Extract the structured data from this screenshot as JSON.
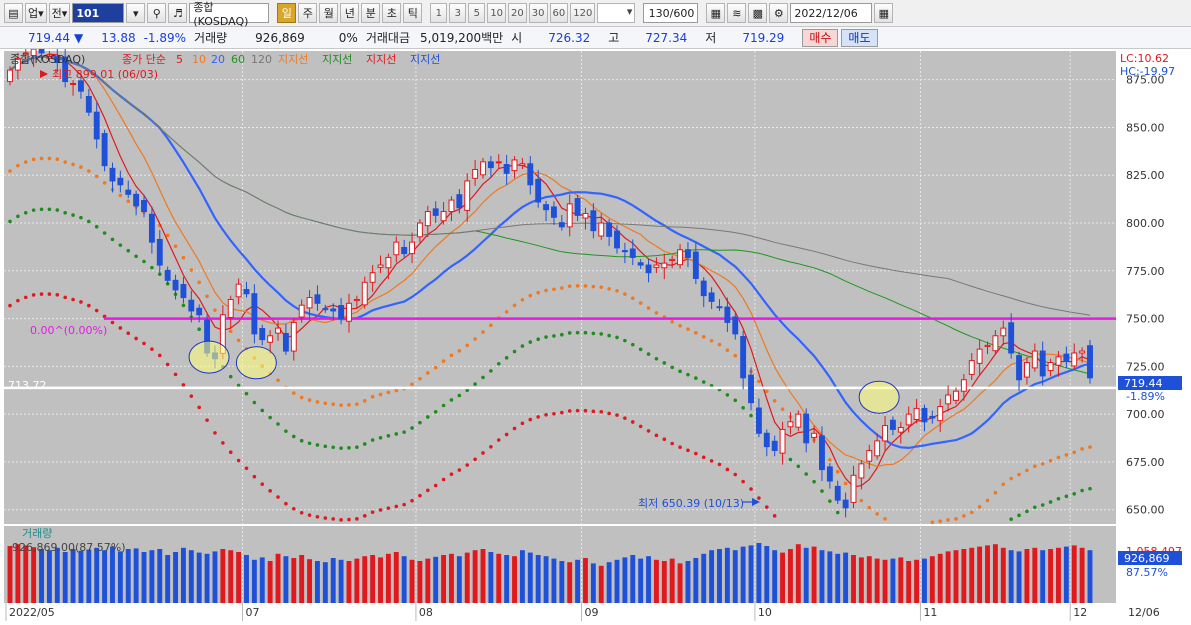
{
  "toolbar": {
    "up_label": "업",
    "jeon_label": "전",
    "code": "101",
    "market_name": "종합(KOSDAQ)",
    "periods": [
      "일",
      "주",
      "월",
      "년",
      "분",
      "초",
      "틱"
    ],
    "active_period": "일",
    "intervals": [
      "1",
      "3",
      "5",
      "10",
      "20",
      "30",
      "60",
      "120"
    ],
    "count": "130/600",
    "date": "2022/12/06"
  },
  "info": {
    "price": "719.44",
    "direction_arrow": "▼",
    "change": "13.88",
    "change_pct": "-1.89%",
    "volume_label": "거래량",
    "volume": "926,869",
    "volume_pct": "0%",
    "amount_label": "거래대금",
    "amount": "5,019,200백만",
    "open_label": "시",
    "open": "726.32",
    "high_label": "고",
    "high": "727.34",
    "low_label": "저",
    "low": "719.29",
    "buy_label": "매수",
    "sell_label": "매도"
  },
  "legend": {
    "prefix": "종합(KOSDAQ)",
    "ma_label": "종가 단순",
    "ma_periods": [
      "5",
      "10",
      "20",
      "60",
      "120"
    ],
    "envelope_labels": [
      "지지선",
      "지지선",
      "지지선",
      "지지선"
    ]
  },
  "annotations": {
    "top_right_lc": "LC:10.62",
    "top_right_hc": "HC:-19.97",
    "high_note": "최고 899.01 (06/03)",
    "low_note": "최저 650.39 (10/13)",
    "hline_label": "0.00^(0.00%)",
    "support_value": "713.72",
    "price_tag": "719.44",
    "price_tag_pct": "-1.89%",
    "volume_title": "거래량",
    "volume_legend": "926,869.00(87.57%)",
    "volume_axis_top": "1,058,497",
    "volume_tag": "926,869",
    "volume_tag_pct": "87.57%"
  },
  "colors": {
    "up": "#e0191e",
    "down": "#1e50d8",
    "ma5": "#e0191e",
    "ma10": "#f07820",
    "ma20": "#3264ff",
    "ma60": "#1e961e",
    "ma120": "#787878",
    "env_orange": "#f07820",
    "env_green": "#1e8c1e",
    "env_red": "#e0191e",
    "hline": "#e619e6",
    "support_line": "#ffffff",
    "plot_bg": "#c0c0c0"
  },
  "chart_data": {
    "type": "candlestick",
    "x_labels": [
      "2022/05",
      "07",
      "08",
      "09",
      "10",
      "11",
      "12",
      "12/06"
    ],
    "y_ticks": [
      "875.00",
      "850.00",
      "825.00",
      "800.00",
      "775.00",
      "750.00",
      "725.00",
      "700.00",
      "675.00",
      "650.00"
    ],
    "ylim": [
      642,
      890
    ],
    "horizontal_level": 750,
    "support_level": 713.72,
    "closes": [
      880,
      886,
      889,
      891,
      889,
      887,
      884,
      874,
      873,
      869,
      858,
      844,
      830,
      822,
      820,
      815,
      809,
      806,
      790,
      778,
      770,
      765,
      761,
      754,
      752,
      732,
      729,
      752,
      760,
      768,
      763,
      742,
      739,
      741,
      745,
      733,
      748,
      757,
      761,
      758,
      755,
      754,
      750,
      758,
      760,
      769,
      774,
      778,
      782,
      790,
      784,
      790,
      800,
      806,
      804,
      806,
      812,
      808,
      822,
      828,
      832,
      829,
      832,
      826,
      833,
      831,
      820,
      811,
      807,
      803,
      798,
      810,
      804,
      805,
      796,
      800,
      793,
      787,
      785,
      782,
      778,
      774,
      778,
      779,
      781,
      786,
      782,
      771,
      762,
      759,
      756,
      748,
      742,
      719,
      706,
      690,
      683,
      681,
      692,
      696,
      700,
      685,
      690,
      671,
      665,
      655,
      651,
      668,
      674,
      681,
      686,
      694,
      692,
      693,
      700,
      703,
      696,
      698,
      704,
      710,
      712,
      718,
      728,
      734,
      736,
      741,
      745,
      732,
      718,
      727,
      733,
      720,
      727,
      730,
      728,
      732,
      733,
      719
    ],
    "volume_pct": [
      95,
      98,
      96,
      93,
      90,
      88,
      92,
      85,
      90,
      87,
      89,
      92,
      88,
      94,
      86,
      90,
      91,
      85,
      88,
      90,
      80,
      85,
      92,
      88,
      84,
      82,
      86,
      90,
      88,
      85,
      80,
      72,
      76,
      70,
      82,
      78,
      75,
      80,
      73,
      70,
      68,
      75,
      72,
      70,
      74,
      78,
      80,
      76,
      82,
      85,
      78,
      72,
      70,
      74,
      77,
      80,
      82,
      78,
      84,
      88,
      90,
      85,
      82,
      80,
      78,
      88,
      84,
      80,
      78,
      74,
      70,
      68,
      72,
      75,
      66,
      62,
      68,
      72,
      76,
      80,
      74,
      78,
      72,
      70,
      74,
      66,
      70,
      75,
      82,
      88,
      90,
      92,
      88,
      94,
      96,
      100,
      95,
      88,
      84,
      90,
      98,
      92,
      94,
      88,
      86,
      82,
      84,
      80,
      76,
      78,
      74,
      72,
      74,
      76,
      70,
      72,
      74,
      78,
      82,
      86,
      88,
      90,
      92,
      94,
      96,
      98,
      92,
      88,
      86,
      90,
      92,
      88,
      90,
      92,
      94,
      96,
      92,
      88
    ]
  }
}
